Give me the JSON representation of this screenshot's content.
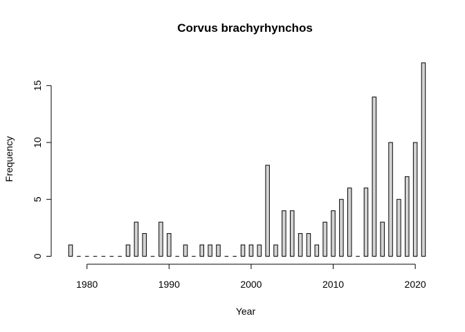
{
  "chart_data": {
    "type": "bar",
    "title": "Corvus brachyrhynchos",
    "xlabel": "Year",
    "ylabel": "Frequency",
    "x": [
      1978,
      1979,
      1980,
      1981,
      1982,
      1983,
      1984,
      1985,
      1986,
      1987,
      1988,
      1989,
      1990,
      1991,
      1992,
      1993,
      1994,
      1995,
      1996,
      1997,
      1998,
      1999,
      2000,
      2001,
      2002,
      2003,
      2004,
      2005,
      2006,
      2007,
      2008,
      2009,
      2010,
      2011,
      2012,
      2013,
      2014,
      2015,
      2016,
      2017,
      2018,
      2019,
      2020,
      2021
    ],
    "values": [
      1,
      0,
      0,
      0,
      0,
      0,
      0,
      1,
      3,
      2,
      0,
      3,
      2,
      0,
      1,
      0,
      1,
      1,
      1,
      0,
      0,
      1,
      1,
      1,
      8,
      1,
      4,
      4,
      2,
      2,
      1,
      3,
      4,
      5,
      6,
      0,
      6,
      14,
      3,
      10,
      5,
      7,
      10,
      17
    ],
    "xticks": [
      "1980",
      "1990",
      "2000",
      "2010",
      "2020"
    ],
    "yticks": [
      "0",
      "5",
      "10",
      "15"
    ],
    "xlim": [
      1978,
      2021
    ],
    "ylim": [
      0,
      17
    ],
    "grid": false,
    "colors": {
      "bar_fill": "#d3d3d3",
      "bar_stroke": "#000000"
    }
  }
}
